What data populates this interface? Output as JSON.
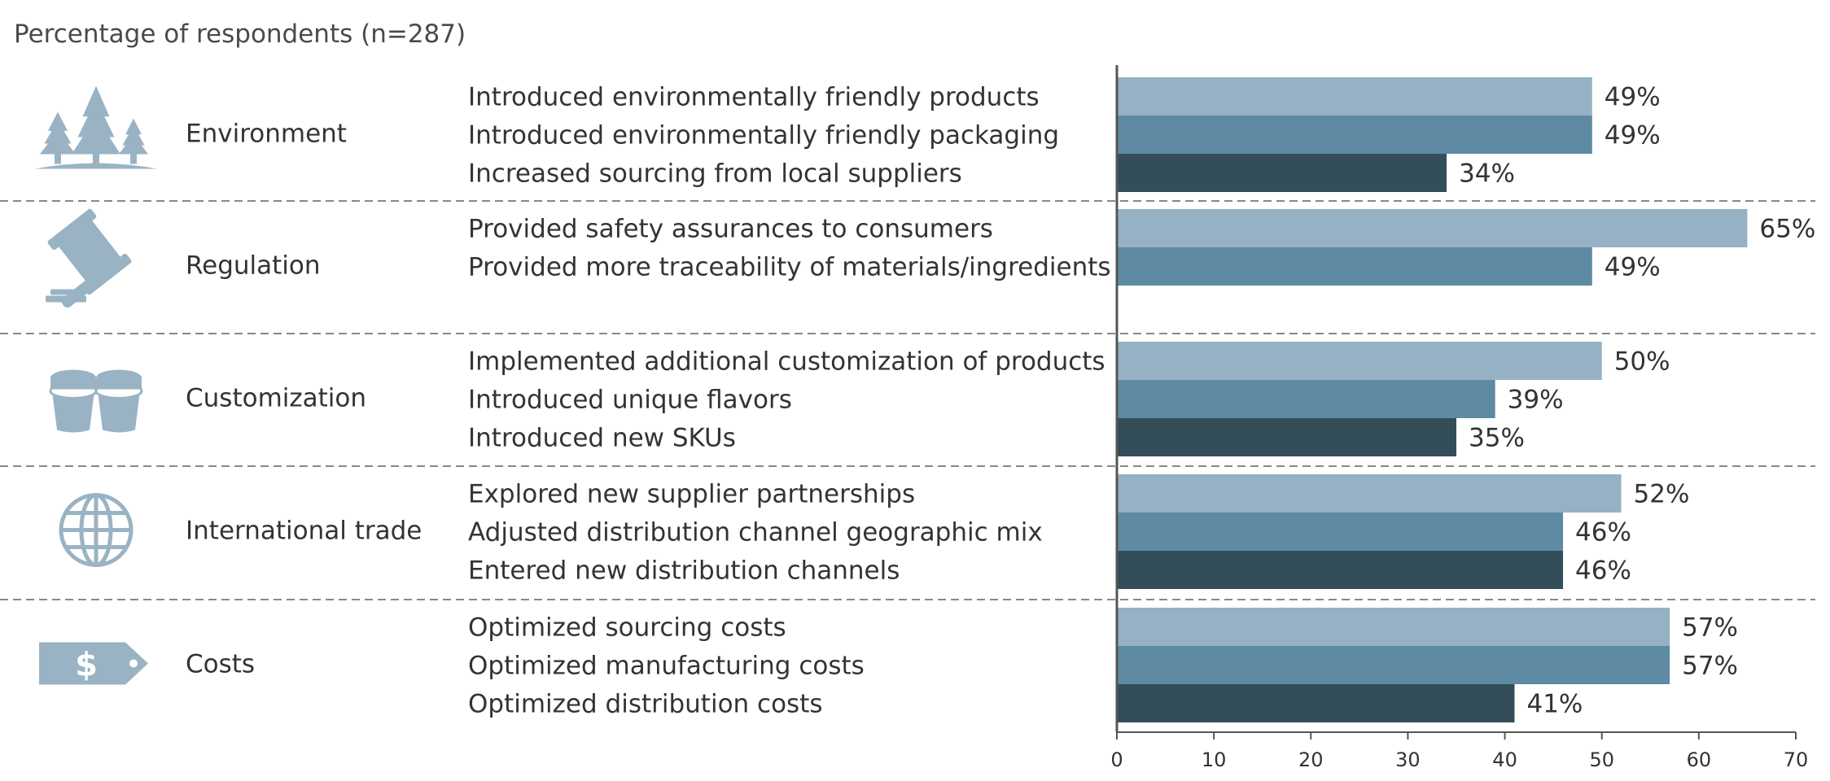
{
  "subtitle": "Percentage of respondents (n=287)",
  "colors": {
    "light": "#95b1c3",
    "mid": "#5e8aa3",
    "dark": "#334d59",
    "icon": "#9ab3c4",
    "separator": "#888888",
    "axis": "#555555"
  },
  "chart_data": {
    "type": "bar",
    "orientation": "horizontal",
    "xlim": [
      0,
      70
    ],
    "xticks": [
      0,
      10,
      20,
      30,
      40,
      50,
      60,
      70
    ],
    "value_suffix": "%",
    "grid": false,
    "groups": [
      {
        "category": "Environment",
        "icon": "trees-icon",
        "items": [
          {
            "label": "Introduced environmentally friendly products",
            "value": 49,
            "shade": "light"
          },
          {
            "label": "Introduced environmentally friendly packaging",
            "value": 49,
            "shade": "mid"
          },
          {
            "label": "Increased sourcing from local suppliers",
            "value": 34,
            "shade": "dark"
          }
        ]
      },
      {
        "category": "Regulation",
        "icon": "gavel-icon",
        "items": [
          {
            "label": "Provided safety assurances to consumers",
            "value": 65,
            "shade": "light"
          },
          {
            "label": "Provided more traceability of materials/ingredients",
            "value": 49,
            "shade": "mid"
          }
        ]
      },
      {
        "category": "Customization",
        "icon": "cups-icon",
        "items": [
          {
            "label": "Implemented additional customization of products",
            "value": 50,
            "shade": "light"
          },
          {
            "label": "Introduced unique flavors",
            "value": 39,
            "shade": "mid"
          },
          {
            "label": "Introduced new SKUs",
            "value": 35,
            "shade": "dark"
          }
        ]
      },
      {
        "category": "International trade",
        "icon": "globe-icon",
        "items": [
          {
            "label": "Explored new supplier partnerships",
            "value": 52,
            "shade": "light"
          },
          {
            "label": "Adjusted distribution channel geographic mix",
            "value": 46,
            "shade": "mid"
          },
          {
            "label": "Entered new distribution channels",
            "value": 46,
            "shade": "dark"
          }
        ]
      },
      {
        "category": "Costs",
        "icon": "price-tag-icon",
        "items": [
          {
            "label": "Optimized sourcing costs",
            "value": 57,
            "shade": "light"
          },
          {
            "label": "Optimized manufacturing costs",
            "value": 57,
            "shade": "mid"
          },
          {
            "label": "Optimized distribution costs",
            "value": 41,
            "shade": "dark"
          }
        ]
      }
    ]
  }
}
